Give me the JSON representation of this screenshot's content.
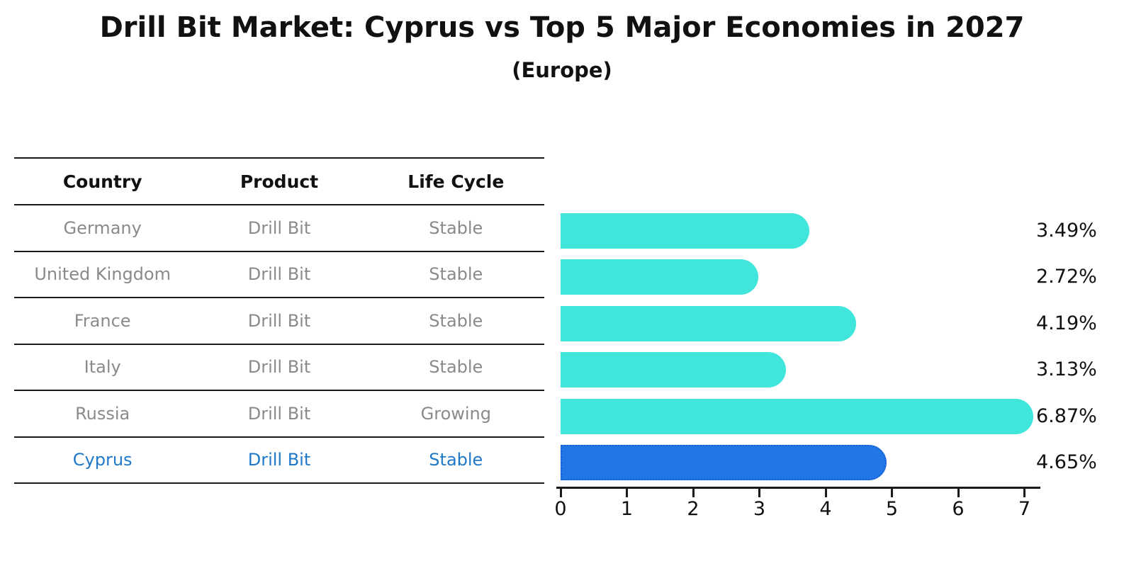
{
  "title": "Drill Bit Market: Cyprus vs Top 5 Major Economies in 2027",
  "subtitle": "(Europe)",
  "table": {
    "headers": [
      "Country",
      "Product",
      "Life Cycle"
    ],
    "rows": [
      {
        "country": "Germany",
        "product": "Drill Bit",
        "life_cycle": "Stable",
        "highlight": false
      },
      {
        "country": "United Kingdom",
        "product": "Drill Bit",
        "life_cycle": "Stable",
        "highlight": false
      },
      {
        "country": "France",
        "product": "Drill Bit",
        "life_cycle": "Stable",
        "highlight": false
      },
      {
        "country": "Italy",
        "product": "Drill Bit",
        "life_cycle": "Stable",
        "highlight": false
      },
      {
        "country": "Russia",
        "product": "Drill Bit",
        "life_cycle": "Growing",
        "highlight": false
      },
      {
        "country": "Cyprus",
        "product": "Drill Bit",
        "life_cycle": "Stable",
        "highlight": true
      }
    ]
  },
  "chart_data": {
    "type": "bar",
    "orientation": "horizontal",
    "title": "Drill Bit Market: Cyprus vs Top 5 Major Economies in 2027",
    "subtitle": "(Europe)",
    "categories": [
      "Germany",
      "United Kingdom",
      "France",
      "Italy",
      "Russia",
      "Cyprus"
    ],
    "values": [
      3.49,
      2.72,
      4.19,
      3.13,
      6.87,
      4.65
    ],
    "value_labels": [
      "3.49%",
      "2.72%",
      "4.19%",
      "3.13%",
      "6.87%",
      "4.65%"
    ],
    "xlim": [
      0,
      7.2
    ],
    "xticks": [
      0,
      1,
      2,
      3,
      4,
      5,
      6,
      7
    ],
    "grid": false,
    "legend": false,
    "highlight_index": 5,
    "bar_color": "#40E5DC",
    "highlight_color": "#2176E8"
  },
  "colors": {
    "row_text": "#8a8a8a",
    "highlight_text": "#1f78c8",
    "line": "#1a1a1a",
    "label_text": "#111111"
  }
}
